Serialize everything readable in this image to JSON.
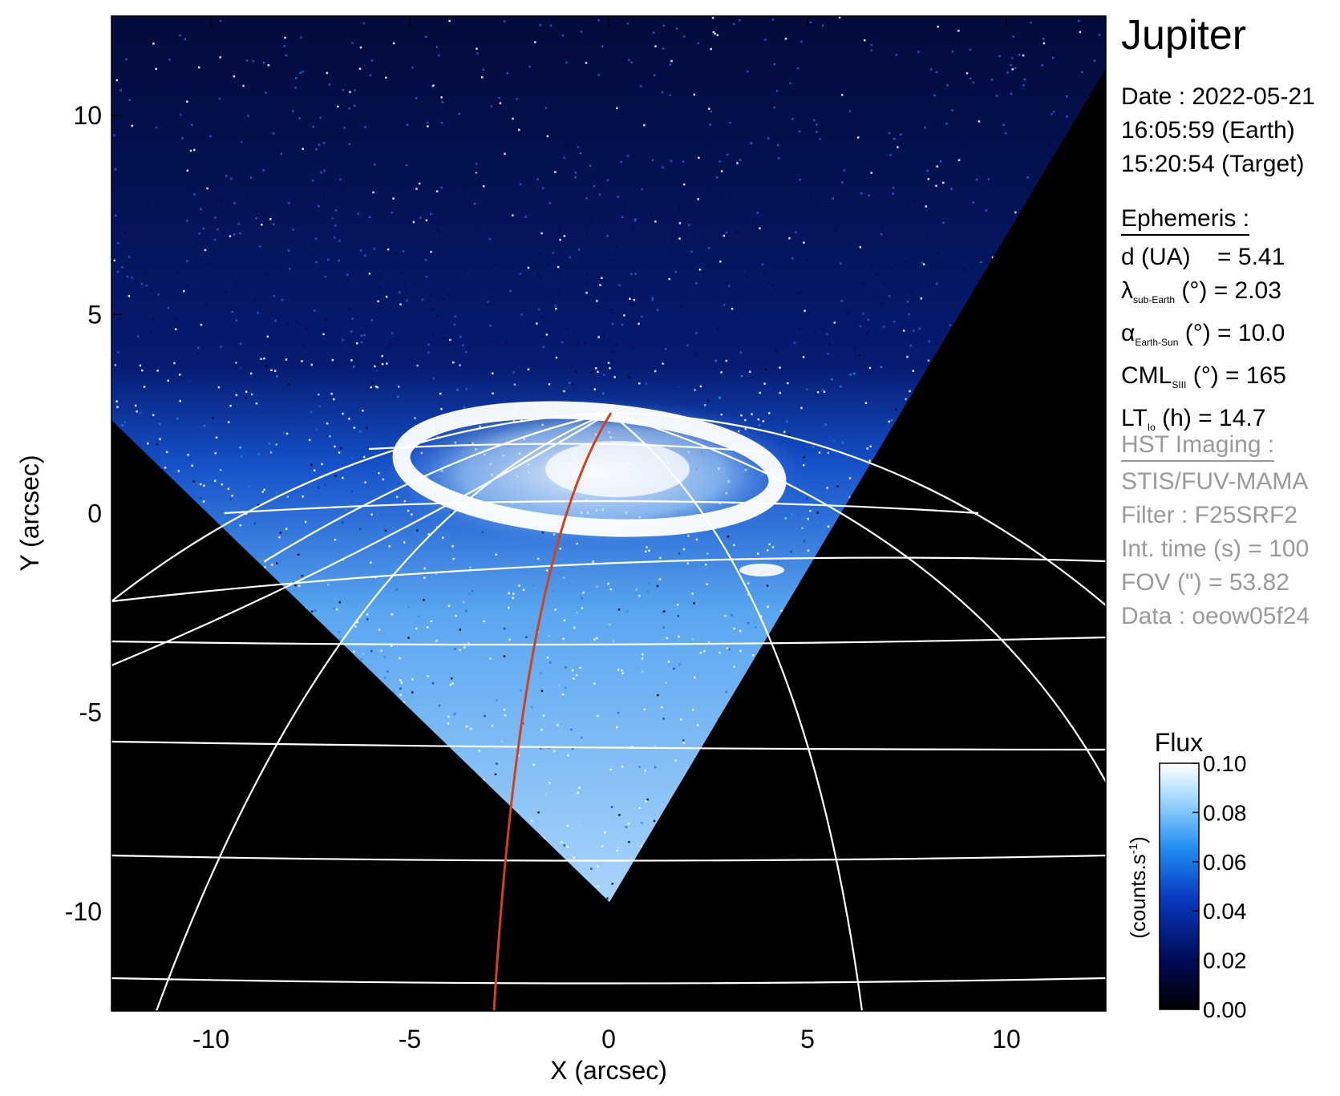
{
  "target": "Jupiter",
  "date_block": [
    "Date : 2022-05-21",
    "16:05:59 (Earth)",
    "15:20:54 (Target)"
  ],
  "ephemeris": {
    "title": "Ephemeris :",
    "d": {
      "label": "d (UA)",
      "value": "= 5.41"
    },
    "lat": {
      "symbol": "λ",
      "sub": "sub-Earth",
      "rest": "(°) = 2.03"
    },
    "phase": {
      "symbol": "α",
      "sub": "Earth-Sun",
      "rest": "(°) = 10.0"
    },
    "cml": {
      "symbol": "CML",
      "sub": "SIII",
      "rest": "(°) = 165"
    },
    "lt": {
      "symbol": "LT",
      "sub": "Io",
      "rest": "(h) = 14.7"
    }
  },
  "hst": {
    "title": "HST Imaging :",
    "lines": [
      "STIS/FUV-MAMA",
      "Filter : F25SRF2",
      "Int. time (s) = 100",
      "FOV (\") = 53.82",
      "Data : oeow05f24"
    ]
  },
  "axes": {
    "xlabel": "X (arcsec)",
    "ylabel": "Y (arcsec)",
    "xlim": [
      -12.5,
      12.5
    ],
    "ylim": [
      -12.5,
      12.5
    ],
    "xticks": [
      -10,
      -5,
      0,
      5,
      10
    ],
    "yticks": [
      -10,
      -5,
      0,
      5,
      10
    ]
  },
  "colorbar": {
    "title": "Flux",
    "label": "(counts.s",
    "label_sup": "-1",
    "label_close": ")",
    "ticks": [
      "0.00",
      "0.02",
      "0.04",
      "0.06",
      "0.08",
      "0.10"
    ],
    "range": [
      0.0,
      0.1
    ]
  },
  "colors": {
    "background": "#000000",
    "grid": "#ffffff",
    "meridian": "#d0421b",
    "colormap": [
      "#000000",
      "#000a55",
      "#0838c0",
      "#1f8cf0",
      "#9fd7ff",
      "#ffffff"
    ]
  }
}
